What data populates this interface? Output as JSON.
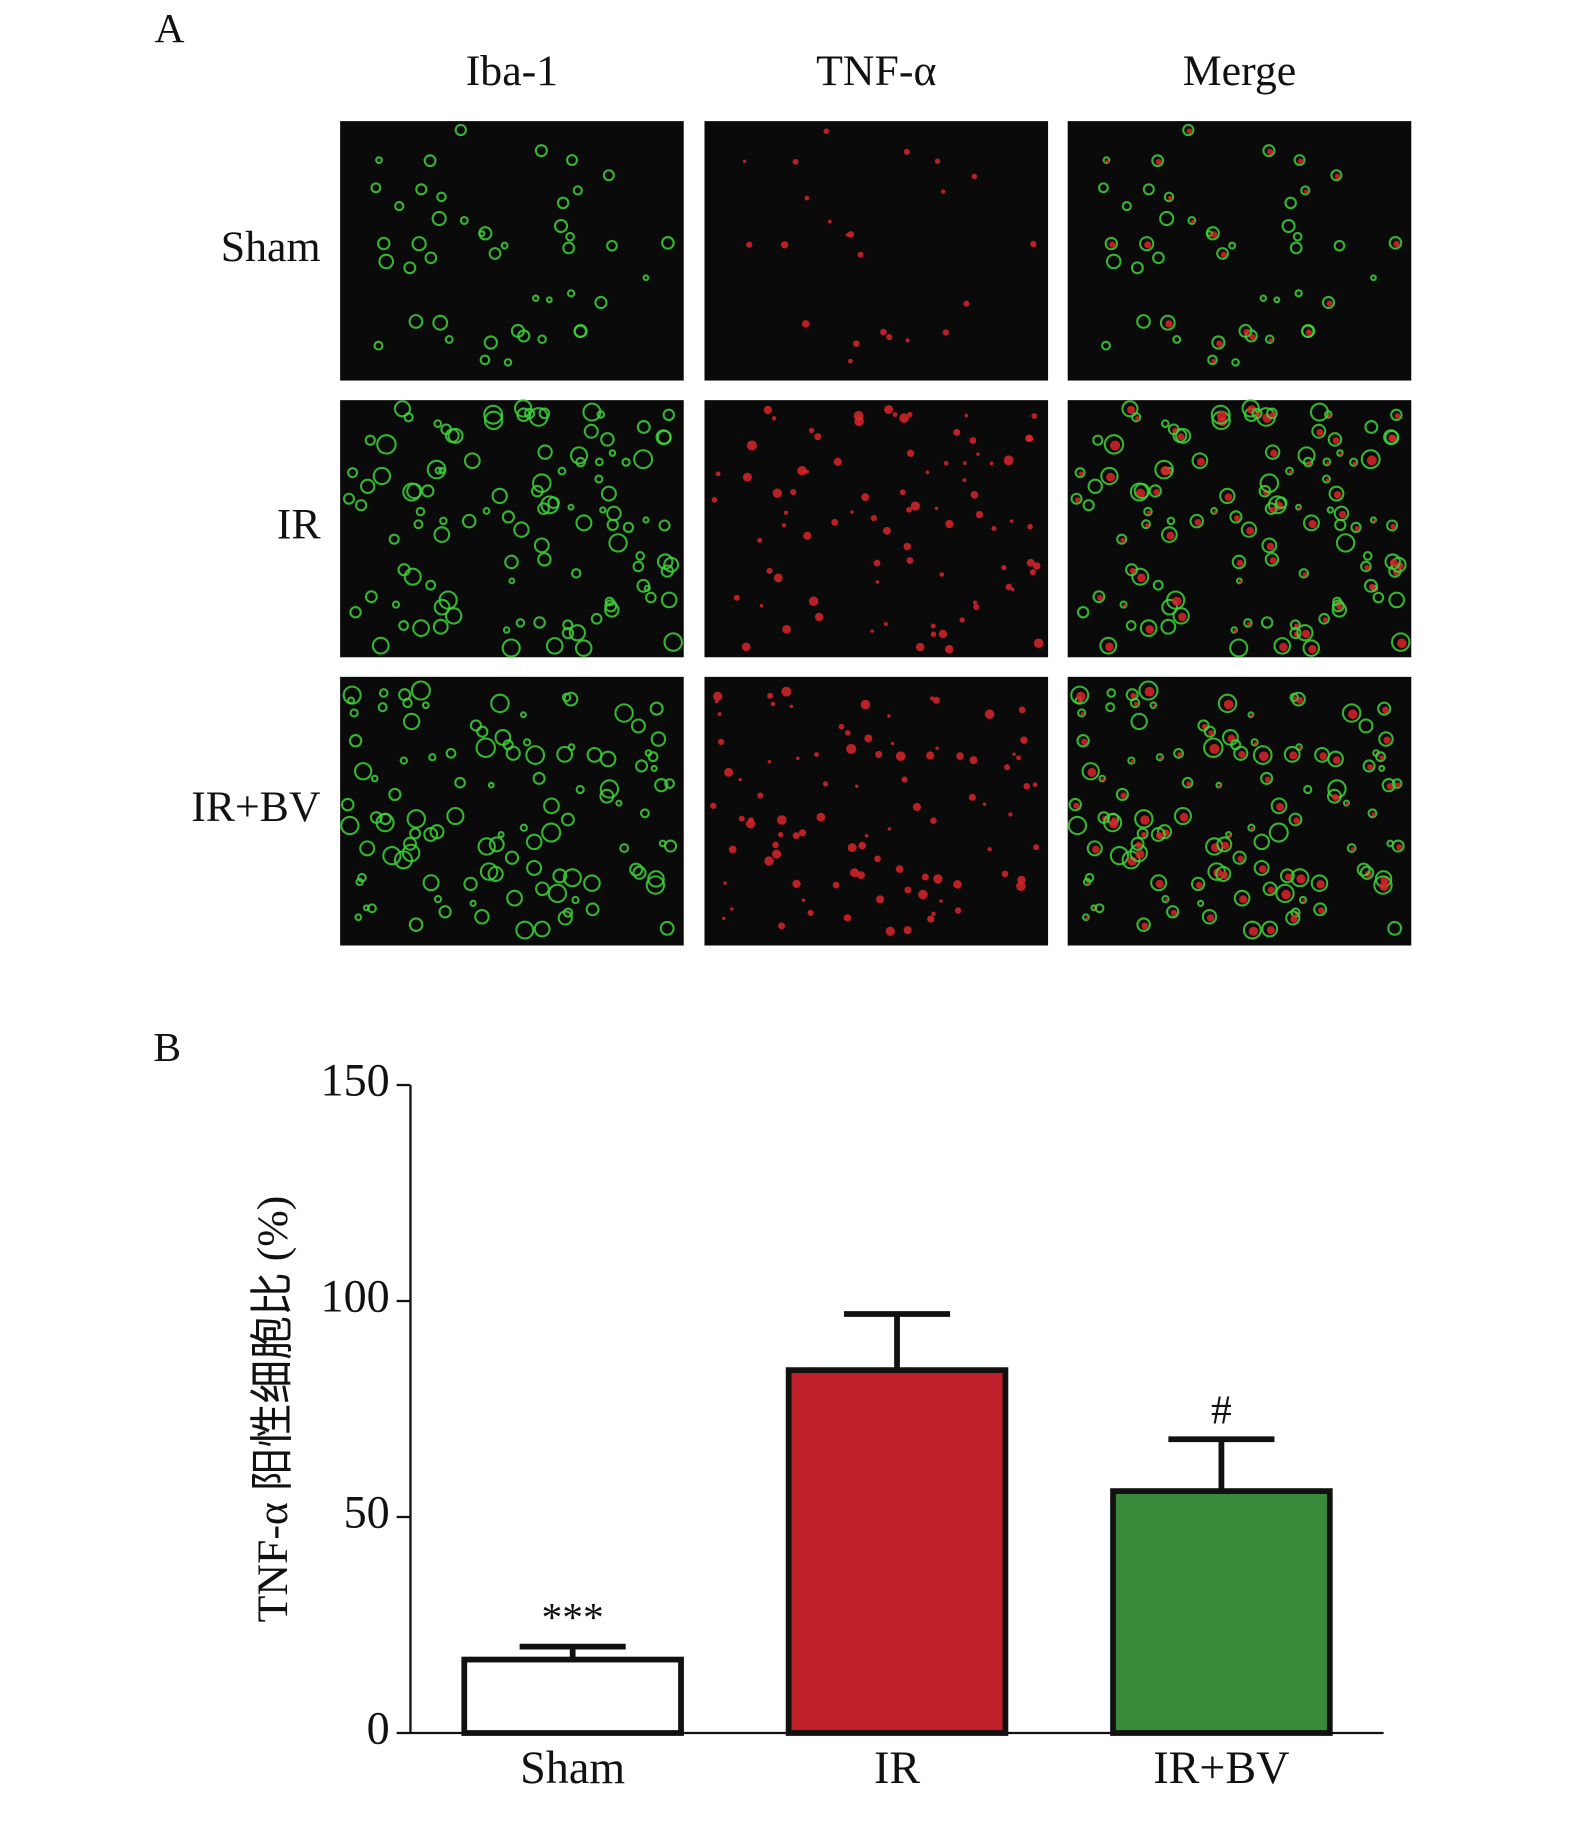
{
  "panel_a": {
    "label": "A",
    "columns": [
      "Iba-1",
      "TNF-α",
      "Merge"
    ],
    "rows": [
      "Sham",
      "IR",
      "IR+BV"
    ]
  },
  "chart_data": {
    "type": "bar",
    "label": "B",
    "y_label": "TNF-α 阳性细胞比 (%)",
    "categories": [
      "Sham",
      "IR",
      "IR+BV"
    ],
    "values": [
      17,
      84,
      56
    ],
    "errors": [
      3,
      13,
      12
    ],
    "annotations": [
      "***",
      null,
      "#"
    ],
    "colors": [
      "#ffffff",
      "#c0202a",
      "#3a8a3c"
    ],
    "ylim": [
      0,
      150
    ],
    "yticks": [
      0,
      50,
      100,
      150
    ]
  }
}
